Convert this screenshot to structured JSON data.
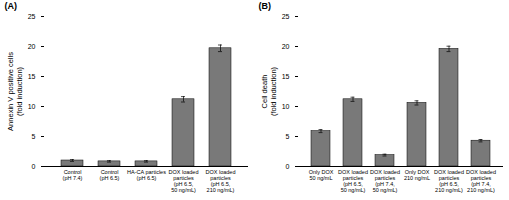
{
  "chart_data": [
    {
      "type": "bar",
      "title": "(A)",
      "ylabel": "Annexin V positive cells\n(fold induction)",
      "categories": [
        "Control\n(pH 7.4)",
        "Control\n(pH 6.5)",
        "HA-CA particles\n(pH 6.5)",
        "DOX loaded\nparticles\n(pH 6.5,\n50 ng/mL)",
        "DOX loaded\nparticles\n(pH 6.5,\n210 ng/mL)"
      ],
      "values": [
        1.0,
        0.85,
        0.85,
        11.2,
        19.7
      ],
      "errors": [
        0.15,
        0.12,
        0.12,
        0.45,
        0.55
      ],
      "color": "#797979",
      "ylim": [
        0,
        25
      ],
      "yticks": [
        0,
        5,
        10,
        15,
        20,
        25
      ]
    },
    {
      "type": "bar",
      "title": "(B)",
      "ylabel": "Cell death\n(fold induction)",
      "categories": [
        "Only DOX\n50 ng/mL",
        "DOX loaded\nparticles\n(pH 6.5,\n50 ng/mL)",
        "DOX loaded\nparticles\n(pH 7.4,\n50 ng/mL)",
        "Only DOX\n210 ng/mL",
        "DOX loaded\nparticles\n(pH 6.5,\n210 ng/mL)",
        "DOX loaded\nparticles\n(pH 7.4,\n210 ng/mL)"
      ],
      "values": [
        5.9,
        11.2,
        1.9,
        10.6,
        19.6,
        4.3
      ],
      "errors": [
        0.25,
        0.35,
        0.15,
        0.35,
        0.45,
        0.2
      ],
      "color": "#797979",
      "ylim": [
        0,
        25
      ],
      "yticks": [
        0,
        5,
        10,
        15,
        20,
        25
      ]
    }
  ]
}
